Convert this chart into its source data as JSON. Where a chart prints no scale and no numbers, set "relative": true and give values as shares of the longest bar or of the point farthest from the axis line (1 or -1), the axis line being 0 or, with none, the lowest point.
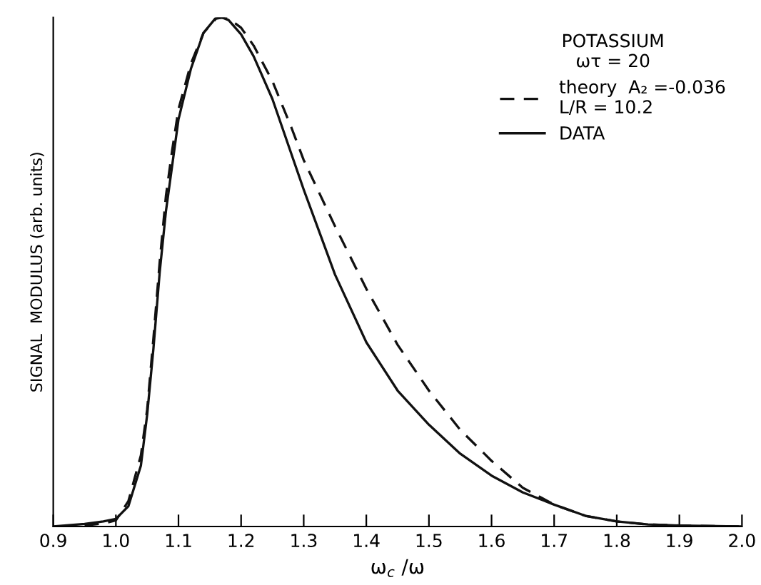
{
  "chart_data": {
    "type": "line",
    "relative": true,
    "xlabel": "ω$_{c}$ /ω",
    "ylabel": "SIGNAL  MODULUS (arb. units)",
    "legend_title": "POTASSIUM\nωτ = 20",
    "legend": "top right",
    "grid": false,
    "xlim": [
      0.9,
      2.0
    ],
    "xticks": [
      0.9,
      {
        "value": 1,
        "label": "1.0"
      },
      1.1,
      1.2,
      1.3,
      1.4,
      1.5,
      1.6,
      1.7,
      1.8,
      1.9,
      {
        "value": 2,
        "label": "2.0"
      }
    ],
    "series": [
      {
        "name": "theory  A₂ =-0.036\nL/R = 10.2",
        "color": "#111111",
        "line_style": "dashed",
        "x": [
          0.95,
          0.98,
          1.0,
          1.02,
          1.04,
          1.05,
          1.06,
          1.07,
          1.08,
          1.09,
          1.1,
          1.12,
          1.14,
          1.16,
          1.17,
          1.18,
          1.2,
          1.22,
          1.25,
          1.28,
          1.3,
          1.35,
          1.4,
          1.45,
          1.5,
          1.55,
          1.6,
          1.65,
          1.7,
          1.75,
          1.8,
          1.85,
          1.9,
          2.0
        ],
        "values": [
          0.002,
          0.006,
          0.012,
          0.05,
          0.14,
          0.23,
          0.37,
          0.52,
          0.65,
          0.74,
          0.82,
          0.91,
          0.97,
          0.998,
          1.0,
          0.998,
          0.98,
          0.945,
          0.875,
          0.785,
          0.72,
          0.59,
          0.467,
          0.357,
          0.267,
          0.19,
          0.129,
          0.076,
          0.043,
          0.021,
          0.01,
          0.004,
          0.002,
          0.0
        ]
      },
      {
        "name": "DATA",
        "color": "#111111",
        "line_style": "solid",
        "x": [
          0.9,
          0.95,
          0.98,
          1.0,
          1.02,
          1.04,
          1.05,
          1.06,
          1.07,
          1.08,
          1.09,
          1.1,
          1.12,
          1.14,
          1.16,
          1.17,
          1.18,
          1.2,
          1.22,
          1.25,
          1.28,
          1.3,
          1.33,
          1.35,
          1.4,
          1.45,
          1.5,
          1.55,
          1.6,
          1.65,
          1.7,
          1.75,
          1.8,
          1.85,
          1.9,
          2.0
        ],
        "values": [
          0.0,
          0.005,
          0.01,
          0.015,
          0.04,
          0.12,
          0.22,
          0.35,
          0.5,
          0.62,
          0.71,
          0.8,
          0.9,
          0.97,
          1.0,
          1.0,
          0.995,
          0.967,
          0.924,
          0.84,
          0.733,
          0.662,
          0.562,
          0.495,
          0.362,
          0.267,
          0.2,
          0.143,
          0.1,
          0.067,
          0.043,
          0.021,
          0.01,
          0.004,
          0.002,
          0.0
        ]
      }
    ]
  }
}
